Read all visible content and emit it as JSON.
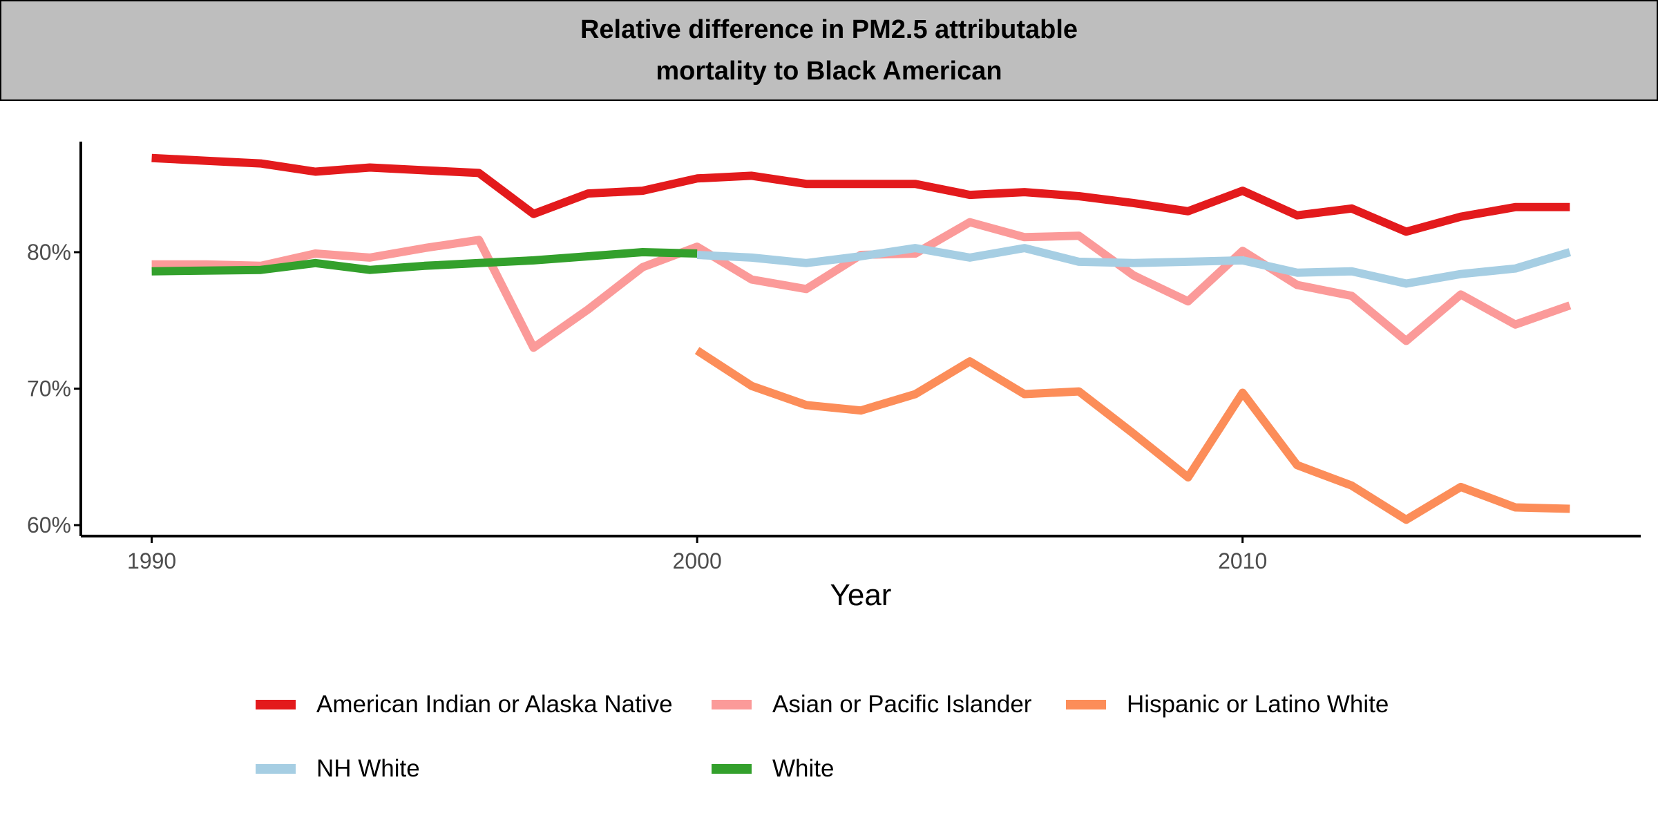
{
  "chart_data": {
    "type": "line",
    "title": "Relative difference in PM2.5 attributable mortality to Black American",
    "title_lines": [
      "Relative difference in PM2.5 attributable",
      "mortality to Black American"
    ],
    "xlabel": "Year",
    "ylabel": "",
    "xlim": [
      1988.7,
      2017.3
    ],
    "ylim": [
      59.2,
      88.1
    ],
    "x_ticks": [
      1990,
      2000,
      2010
    ],
    "x_tick_labels": [
      "1990",
      "2000",
      "2010"
    ],
    "y_ticks": [
      60,
      70,
      80
    ],
    "y_tick_labels": [
      "60%",
      "70%",
      "80%"
    ],
    "grid": false,
    "legend_position": "bottom",
    "series": [
      {
        "name": "American Indian or Alaska Native",
        "color": "#e31a1c",
        "x": [
          1990,
          1991,
          1992,
          1993,
          1994,
          1995,
          1996,
          1997,
          1998,
          1999,
          2000,
          2001,
          2002,
          2003,
          2004,
          2005,
          2006,
          2007,
          2008,
          2009,
          2010,
          2011,
          2012,
          2013,
          2014,
          2015,
          2016
        ],
        "y": [
          86.9,
          86.7,
          86.5,
          85.9,
          86.2,
          86.0,
          85.8,
          82.8,
          84.3,
          84.5,
          85.4,
          85.6,
          85.0,
          85.0,
          85.0,
          84.2,
          84.4,
          84.1,
          83.6,
          83.0,
          84.5,
          82.7,
          83.2,
          81.5,
          82.6,
          83.3,
          83.3
        ]
      },
      {
        "name": "Asian or Pacific Islander",
        "color": "#fb9a99",
        "x": [
          1990,
          1991,
          1992,
          1993,
          1994,
          1995,
          1996,
          1997,
          1998,
          1999,
          2000,
          2001,
          2002,
          2003,
          2004,
          2005,
          2006,
          2007,
          2008,
          2009,
          2010,
          2011,
          2012,
          2013,
          2014,
          2015,
          2016
        ],
        "y": [
          79.1,
          79.1,
          79.0,
          79.9,
          79.6,
          80.3,
          80.9,
          73.0,
          75.8,
          78.9,
          80.4,
          78.0,
          77.3,
          79.8,
          79.9,
          82.2,
          81.1,
          81.2,
          78.3,
          76.4,
          80.1,
          77.6,
          76.8,
          73.5,
          76.9,
          74.7,
          76.1
        ]
      },
      {
        "name": "Hispanic or Latino White",
        "color": "#fc8d59",
        "x": [
          2000,
          2001,
          2002,
          2003,
          2004,
          2005,
          2006,
          2007,
          2008,
          2009,
          2010,
          2011,
          2012,
          2013,
          2014,
          2015,
          2016
        ],
        "y": [
          72.8,
          70.2,
          68.8,
          68.4,
          69.6,
          72.0,
          69.6,
          69.8,
          66.7,
          63.5,
          69.7,
          64.4,
          62.9,
          60.4,
          62.8,
          61.3,
          61.2
        ]
      },
      {
        "name": "NH White",
        "color": "#a6cee3",
        "x": [
          2000,
          2001,
          2002,
          2003,
          2004,
          2005,
          2006,
          2007,
          2008,
          2009,
          2010,
          2011,
          2012,
          2013,
          2014,
          2015,
          2016
        ],
        "y": [
          79.8,
          79.6,
          79.2,
          79.7,
          80.3,
          79.6,
          80.3,
          79.3,
          79.2,
          79.3,
          79.4,
          78.5,
          78.6,
          77.7,
          78.4,
          78.8,
          80.0
        ]
      },
      {
        "name": "White",
        "color": "#33a02c",
        "x": [
          1990,
          1992,
          1993,
          1994,
          1995,
          1996,
          1997,
          1998,
          1999,
          2000
        ],
        "y": [
          78.6,
          78.7,
          79.2,
          78.7,
          79.0,
          79.2,
          79.4,
          79.7,
          80.0,
          79.9
        ]
      }
    ]
  }
}
